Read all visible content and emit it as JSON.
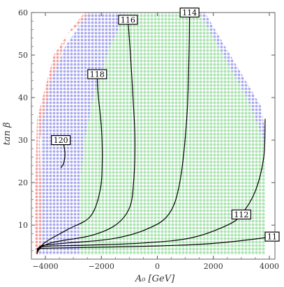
{
  "chart_data": {
    "type": "contour",
    "xlabel": "A₀ [GeV]",
    "ylabel": "tan β",
    "xlim": [
      -4500,
      4200
    ],
    "ylim": [
      2,
      60
    ],
    "x_ticks": [
      -4000,
      -2000,
      0,
      2000,
      4000
    ],
    "x_tick_labels": [
      "−4000",
      "−2000",
      "0",
      "2000",
      "4000"
    ],
    "y_ticks": [
      10,
      20,
      30,
      40,
      50,
      60
    ],
    "y_tick_labels": [
      "10",
      "20",
      "30",
      "40",
      "50",
      "60"
    ],
    "grid": false,
    "colors": {
      "red_region": "#f2a0a0",
      "blue_region": "#a9a9ee",
      "green_region": "#a8e8a8",
      "contour": "#000000"
    },
    "regions": [
      {
        "color": "red_region",
        "polygon": [
          [
            -4350,
            3
          ],
          [
            -4250,
            3
          ],
          [
            -4150,
            5
          ],
          [
            -4150,
            20
          ],
          [
            -4200,
            30
          ],
          [
            -3700,
            45
          ],
          [
            -3200,
            55
          ],
          [
            -2400,
            59
          ],
          [
            -2000,
            60
          ],
          [
            -2600,
            60
          ],
          [
            -3100,
            56
          ],
          [
            -3700,
            50
          ],
          [
            -4300,
            35
          ],
          [
            -4400,
            10
          ]
        ]
      },
      {
        "color": "blue_region",
        "polygon": [
          [
            -4250,
            3
          ],
          [
            3850,
            3
          ],
          [
            3850,
            32
          ],
          [
            3700,
            38
          ],
          [
            1700,
            60
          ],
          [
            -2450,
            60
          ],
          [
            -3300,
            52
          ],
          [
            -3800,
            44
          ],
          [
            -4150,
            33
          ],
          [
            -4150,
            20
          ],
          [
            -4150,
            5
          ]
        ]
      },
      {
        "color": "green_region",
        "polygon": [
          [
            -2800,
            3
          ],
          [
            3850,
            3
          ],
          [
            3850,
            29
          ],
          [
            3200,
            40
          ],
          [
            1500,
            60
          ],
          [
            -1100,
            60
          ],
          [
            -1700,
            52
          ],
          [
            -2300,
            40
          ],
          [
            -2600,
            30
          ],
          [
            -2750,
            20
          ],
          [
            -2800,
            10
          ]
        ]
      }
    ],
    "contours": [
      {
        "label": "120",
        "label_at": [
          -3450,
          30
        ],
        "points": [
          [
            -3450,
            23.5
          ],
          [
            -3350,
            24.5
          ],
          [
            -3300,
            27
          ],
          [
            -3380,
            30
          ]
        ]
      },
      {
        "label": "118",
        "label_at": [
          -2150,
          45.5
        ],
        "points": [
          [
            -4300,
            3.2
          ],
          [
            -4250,
            4
          ],
          [
            -4000,
            6
          ],
          [
            -3200,
            9
          ],
          [
            -2400,
            12
          ],
          [
            -2050,
            18
          ],
          [
            -1970,
            25
          ],
          [
            -2000,
            33
          ],
          [
            -2120,
            41
          ],
          [
            -2150,
            45.5
          ]
        ]
      },
      {
        "label": "116",
        "label_at": [
          -1050,
          58.3
        ],
        "points": [
          [
            -4300,
            3.6
          ],
          [
            -4200,
            4.6
          ],
          [
            -3700,
            6
          ],
          [
            -2400,
            7.5
          ],
          [
            -1500,
            10
          ],
          [
            -1000,
            14
          ],
          [
            -850,
            20
          ],
          [
            -800,
            30
          ],
          [
            -870,
            40
          ],
          [
            -960,
            50
          ],
          [
            -1050,
            58.3
          ]
        ]
      },
      {
        "label": "114",
        "label_at": [
          1150,
          60
        ],
        "points": [
          [
            -4300,
            4
          ],
          [
            -4100,
            5.2
          ],
          [
            -3200,
            5.8
          ],
          [
            -1600,
            6.8
          ],
          [
            -400,
            9
          ],
          [
            400,
            12.5
          ],
          [
            800,
            20
          ],
          [
            1050,
            35
          ],
          [
            1130,
            50
          ],
          [
            1150,
            60
          ]
        ]
      },
      {
        "label": "112",
        "label_at": [
          3000,
          12.5
        ],
        "points": [
          [
            -4300,
            4.3
          ],
          [
            -4000,
            5
          ],
          [
            -2500,
            5.3
          ],
          [
            -500,
            5.8
          ],
          [
            1200,
            7
          ],
          [
            2500,
            10
          ],
          [
            3000,
            12.5
          ],
          [
            3500,
            18
          ],
          [
            3800,
            26
          ],
          [
            3850,
            35
          ]
        ]
      },
      {
        "label": "11",
        "label_at": [
          4100,
          7.3
        ],
        "points": [
          [
            -4300,
            4.5
          ],
          [
            -3800,
            4.6
          ],
          [
            -2000,
            4.8
          ],
          [
            0,
            5.1
          ],
          [
            1800,
            5.6
          ],
          [
            3200,
            6.5
          ],
          [
            4100,
            7.3
          ]
        ]
      }
    ]
  }
}
